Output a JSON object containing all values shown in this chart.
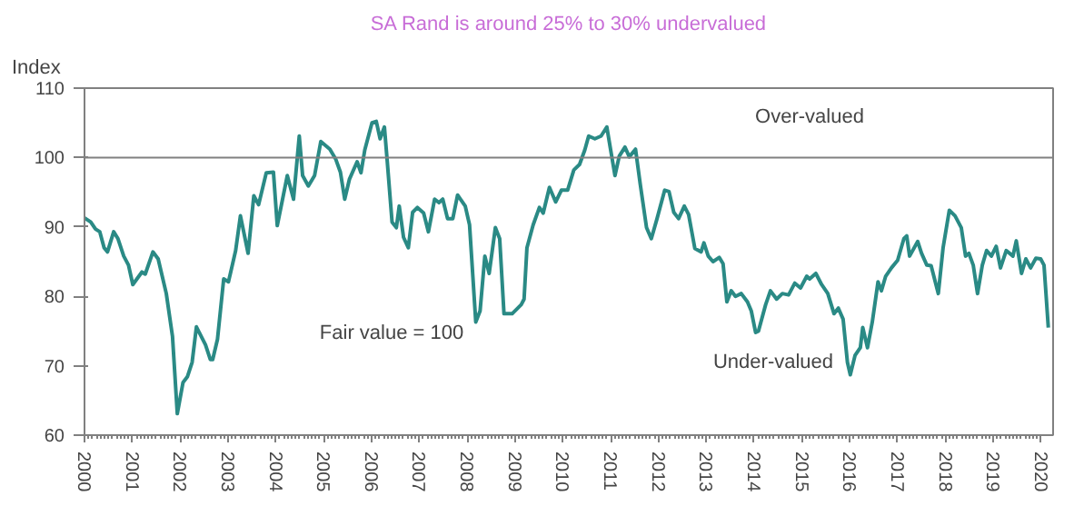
{
  "chart_data": {
    "type": "line",
    "title": "SA Rand is around 25% to 30% undervalued",
    "ylabel": "Index",
    "x": [
      2000.0,
      2000.13,
      2000.23,
      2000.32,
      2000.41,
      2000.48,
      2000.61,
      2000.7,
      2000.82,
      2000.92,
      2001.01,
      2001.2,
      2001.27,
      2001.43,
      2001.54,
      2001.71,
      2001.84,
      2001.94,
      2002.06,
      2002.15,
      2002.25,
      2002.34,
      2002.53,
      2002.63,
      2002.68,
      2002.78,
      2002.91,
      2003.01,
      2003.16,
      2003.26,
      2003.42,
      2003.54,
      2003.64,
      2003.8,
      2003.95,
      2004.03,
      2004.24,
      2004.37,
      2004.49,
      2004.56,
      2004.68,
      2004.81,
      2004.94,
      2005.13,
      2005.25,
      2005.35,
      2005.44,
      2005.54,
      2005.7,
      2005.78,
      2005.86,
      2006.01,
      2006.1,
      2006.18,
      2006.27,
      2006.33,
      2006.43,
      2006.52,
      2006.58,
      2006.67,
      2006.77,
      2006.86,
      2006.96,
      2007.09,
      2007.19,
      2007.32,
      2007.41,
      2007.49,
      2007.59,
      2007.7,
      2007.8,
      2007.96,
      2008.05,
      2008.18,
      2008.27,
      2008.37,
      2008.46,
      2008.59,
      2008.68,
      2008.77,
      2008.94,
      2009.13,
      2009.19,
      2009.25,
      2009.38,
      2009.51,
      2009.59,
      2009.72,
      2009.85,
      2009.97,
      2010.1,
      2010.23,
      2010.35,
      2010.46,
      2010.54,
      2010.67,
      2010.8,
      2010.92,
      2010.99,
      2011.09,
      2011.18,
      2011.3,
      2011.39,
      2011.52,
      2011.62,
      2011.75,
      2011.85,
      2011.97,
      2012.13,
      2012.22,
      2012.32,
      2012.42,
      2012.54,
      2012.63,
      2012.76,
      2012.89,
      2012.95,
      2013.04,
      2013.14,
      2013.27,
      2013.35,
      2013.43,
      2013.52,
      2013.61,
      2013.73,
      2013.86,
      2013.94,
      2014.03,
      2014.09,
      2014.24,
      2014.34,
      2014.47,
      2014.59,
      2014.72,
      2014.85,
      2014.97,
      2015.1,
      2015.16,
      2015.29,
      2015.41,
      2015.54,
      2015.67,
      2015.76,
      2015.86,
      2015.95,
      2016.01,
      2016.11,
      2016.22,
      2016.27,
      2016.37,
      2016.47,
      2016.59,
      2016.66,
      2016.75,
      2016.87,
      2017.0,
      2017.13,
      2017.19,
      2017.25,
      2017.42,
      2017.5,
      2017.61,
      2017.7,
      2017.85,
      2017.95,
      2018.08,
      2018.2,
      2018.33,
      2018.42,
      2018.49,
      2018.58,
      2018.67,
      2018.77,
      2018.86,
      2018.96,
      2019.06,
      2019.15,
      2019.27,
      2019.41,
      2019.48,
      2019.59,
      2019.68,
      2019.78,
      2019.89,
      2019.99,
      2020.06,
      2020.15
    ],
    "series": [
      {
        "color": "#2a8a85",
        "values": [
          91.3,
          90.7,
          89.7,
          89.3,
          87.0,
          86.4,
          89.3,
          88.3,
          85.8,
          84.5,
          81.7,
          83.5,
          83.2,
          86.4,
          85.4,
          80.4,
          74.2,
          63.1,
          67.6,
          68.4,
          70.5,
          75.6,
          73.0,
          70.9,
          70.9,
          73.8,
          82.5,
          82.1,
          86.6,
          91.6,
          86.2,
          94.5,
          93.2,
          97.8,
          97.9,
          90.2,
          97.4,
          94.0,
          103.1,
          97.4,
          95.9,
          97.4,
          102.3,
          101.2,
          99.8,
          97.9,
          94.0,
          96.9,
          99.4,
          97.8,
          101.1,
          105.0,
          105.2,
          102.7,
          104.4,
          99.4,
          90.7,
          89.9,
          93.0,
          88.5,
          87.0,
          92.1,
          92.8,
          92.0,
          89.3,
          94.0,
          93.5,
          94.0,
          91.2,
          91.2,
          94.6,
          93.0,
          90.3,
          76.3,
          77.9,
          85.8,
          83.3,
          89.9,
          88.3,
          77.5,
          77.5,
          78.8,
          79.6,
          87.0,
          90.3,
          92.8,
          92.0,
          95.7,
          93.6,
          95.3,
          95.3,
          98.2,
          99.0,
          101.1,
          103.1,
          102.7,
          103.1,
          104.4,
          101.5,
          97.4,
          100.2,
          101.5,
          100.1,
          101.2,
          96.1,
          89.9,
          88.3,
          91.2,
          95.3,
          95.1,
          92.1,
          91.2,
          93.0,
          91.8,
          86.9,
          86.4,
          87.7,
          85.8,
          85.0,
          85.6,
          84.7,
          79.2,
          80.8,
          80.0,
          80.4,
          79.2,
          77.9,
          74.8,
          75.0,
          78.8,
          80.8,
          79.6,
          80.4,
          80.2,
          81.9,
          81.2,
          82.9,
          82.5,
          83.3,
          81.7,
          80.4,
          77.5,
          78.3,
          76.7,
          70.5,
          68.7,
          71.5,
          72.6,
          75.5,
          72.6,
          76.3,
          82.1,
          80.8,
          82.9,
          84.1,
          85.2,
          88.3,
          88.7,
          85.8,
          87.9,
          86.2,
          84.5,
          84.4,
          80.4,
          87.0,
          92.4,
          91.6,
          89.9,
          85.8,
          86.2,
          84.5,
          80.4,
          84.5,
          86.6,
          85.8,
          87.2,
          84.1,
          86.6,
          85.8,
          88.0,
          83.3,
          85.4,
          84.1,
          85.5,
          85.4,
          84.5,
          75.5
        ]
      }
    ],
    "xlim": [
      2000,
      2020.25
    ],
    "xticks": [
      2000,
      2001,
      2002,
      2003,
      2004,
      2005,
      2006,
      2007,
      2008,
      2009,
      2010,
      2011,
      2012,
      2013,
      2014,
      2015,
      2016,
      2017,
      2018,
      2019,
      2020
    ],
    "ylim": [
      60,
      110
    ],
    "yticks": [
      60,
      70,
      80,
      90,
      100,
      110
    ],
    "ref_lines": [
      {
        "axis": "y",
        "value": 100,
        "color": "#808080"
      }
    ],
    "annotations": [
      "Over-valued",
      "Fair value = 100",
      "Under-valued"
    ],
    "grid": false,
    "marker": "none",
    "line_style": "solid"
  }
}
